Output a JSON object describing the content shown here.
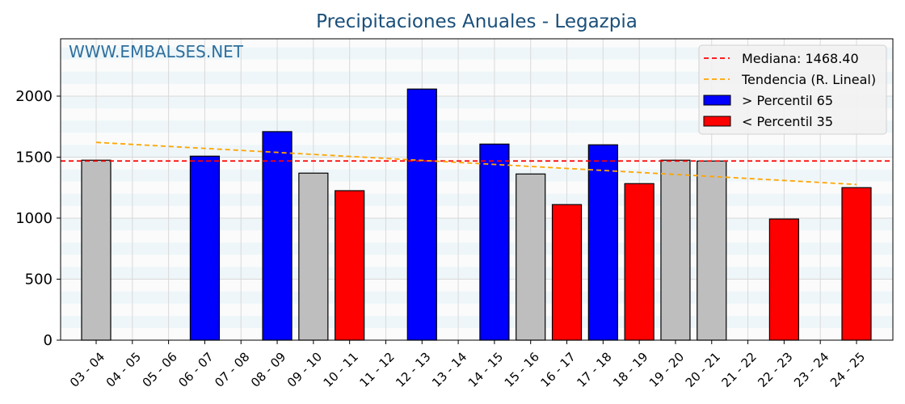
{
  "chart_data": {
    "type": "bar",
    "title": "Precipitaciones Anuales - Legazpia",
    "watermark": "WWW.EMBALSES.NET",
    "xlabel": "",
    "ylabel": "",
    "ylim": [
      0,
      2470
    ],
    "yticks": [
      0,
      500,
      1000,
      1500,
      2000
    ],
    "grid": true,
    "legend_position": "top-right",
    "categories": [
      "03 - 04",
      "04 - 05",
      "05 - 06",
      "06 - 07",
      "07 - 08",
      "08 - 09",
      "09 - 10",
      "10 - 11",
      "11 - 12",
      "12 - 13",
      "13 - 14",
      "14 - 15",
      "15 - 16",
      "16 - 17",
      "17 - 18",
      "18 - 19",
      "19 - 20",
      "20 - 21",
      "21 - 22",
      "22 - 23",
      "23 - 24",
      "24 - 25"
    ],
    "values": [
      1475,
      null,
      null,
      1508,
      null,
      1709,
      1369,
      1225,
      null,
      2058,
      null,
      1607,
      1362,
      1111,
      1601,
      1283,
      1475,
      1468,
      null,
      993,
      null,
      1250
    ],
    "classes": [
      "mid",
      null,
      null,
      "high",
      null,
      "high",
      "mid",
      "low",
      null,
      "high",
      null,
      "high",
      "mid",
      "low",
      "high",
      "low",
      "mid",
      "mid",
      null,
      "low",
      null,
      "low"
    ],
    "colors": {
      "high": "#0000ff",
      "low": "#ff0000",
      "mid": "#bebebe",
      "median": "#ff0000",
      "trend": "#ffa500",
      "title": "#1a4f7a",
      "watermark": "#2e6f9e"
    },
    "median": 1468.4,
    "trend": {
      "start": 1621,
      "end": 1276
    },
    "legend": [
      {
        "label": "Mediana: 1468.40",
        "kind": "median"
      },
      {
        "label": "Tendencia (R. Lineal)",
        "kind": "trend"
      },
      {
        "label": " > Percentil 65",
        "kind": "high"
      },
      {
        "label": " < Percentil 35",
        "kind": "low"
      }
    ]
  }
}
